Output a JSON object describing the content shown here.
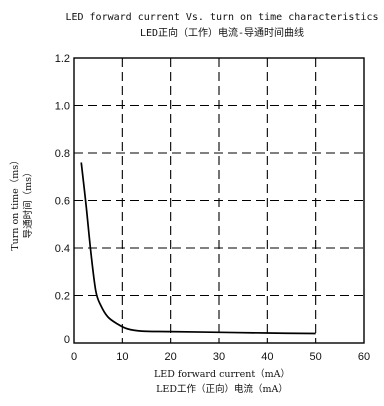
{
  "chart_data": {
    "type": "line",
    "title": "LED forward current Vs. turn on time characteristics",
    "subtitle": "LED正向（工作）电流-导通时间曲线",
    "xlabel": "LED forward current（mA）",
    "xlabel_cn": "LED工作（正向）电流（mA）",
    "ylabel": "Turn on time（ms）",
    "ylabel_cn": "导通时间（ms）",
    "xlim": [
      0,
      60
    ],
    "ylim": [
      0,
      1.2
    ],
    "x_ticks": [
      "0",
      "10",
      "20",
      "30",
      "40",
      "50",
      "60"
    ],
    "y_ticks": [
      "0",
      "0.2",
      "0.4",
      "0.6",
      "0.8",
      "1.0",
      "1.2"
    ],
    "grid": true,
    "grid_style": "dashed",
    "series": [
      {
        "x": [
          1.5,
          2.5,
          3.5,
          4.5,
          5.5,
          7,
          9,
          11,
          14,
          20,
          30,
          40,
          50
        ],
        "y": [
          0.76,
          0.58,
          0.38,
          0.22,
          0.16,
          0.11,
          0.08,
          0.06,
          0.05,
          0.048,
          0.045,
          0.042,
          0.04
        ],
        "color": "#000000"
      }
    ]
  }
}
